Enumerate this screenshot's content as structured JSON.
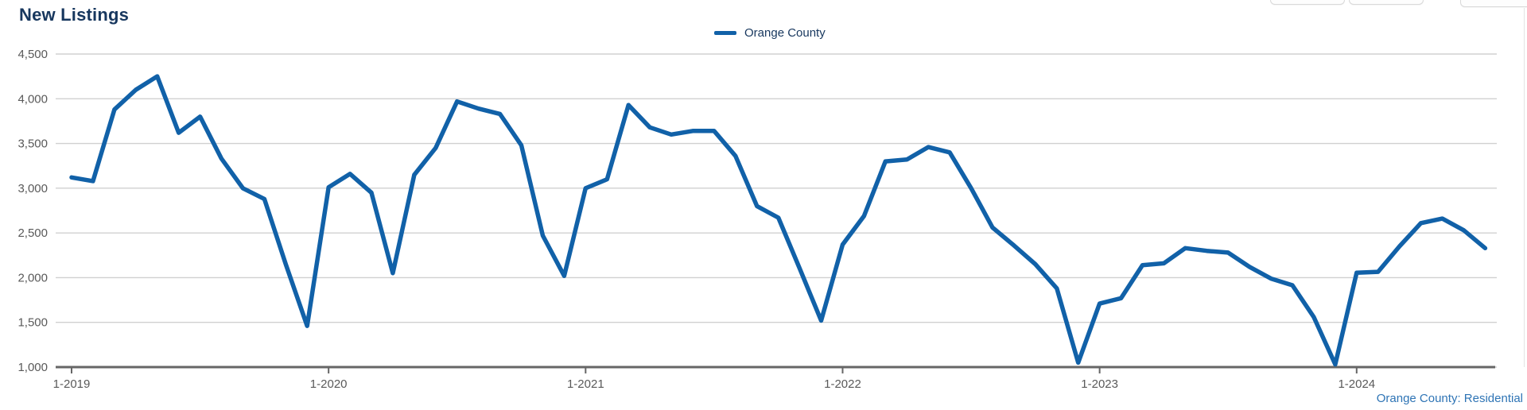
{
  "header": {
    "title": "New Listings",
    "title_color": "#17375E"
  },
  "legend": {
    "series_label": "Orange County",
    "swatch_color": "#1161A8"
  },
  "footer": {
    "caption": "Orange County: Residential",
    "color": "#2E74B5"
  },
  "chart_data": {
    "type": "line",
    "title": "New Listings",
    "xlabel": "",
    "ylabel": "",
    "ylim": [
      1000,
      4500
    ],
    "grid": "horizontal",
    "legend_position": "top-center",
    "colors": {
      "gridline": "#D0D0D0",
      "axis_line": "#666666",
      "tick_text": "#595959"
    },
    "y_tick_values": [
      4500,
      4000,
      3500,
      3000,
      2500,
      2000,
      1500,
      1000
    ],
    "y_tick_labels": [
      "4,500",
      "4,000",
      "3,500",
      "3,000",
      "2,500",
      "2,000",
      "1,500",
      "1,000"
    ],
    "x_tick_labels": [
      "1-2019",
      "1-2020",
      "1-2021",
      "1-2022",
      "1-2023",
      "1-2024"
    ],
    "series": [
      {
        "name": "Orange County",
        "color": "#1161A8",
        "x": [
          "1-2019",
          "2-2019",
          "3-2019",
          "4-2019",
          "5-2019",
          "6-2019",
          "7-2019",
          "8-2019",
          "9-2019",
          "10-2019",
          "11-2019",
          "12-2019",
          "1-2020",
          "2-2020",
          "3-2020",
          "4-2020",
          "5-2020",
          "6-2020",
          "7-2020",
          "8-2020",
          "9-2020",
          "10-2020",
          "11-2020",
          "12-2020",
          "1-2021",
          "2-2021",
          "3-2021",
          "4-2021",
          "5-2021",
          "6-2021",
          "7-2021",
          "8-2021",
          "9-2021",
          "10-2021",
          "11-2021",
          "12-2021",
          "1-2022",
          "2-2022",
          "3-2022",
          "4-2022",
          "5-2022",
          "6-2022",
          "7-2022",
          "8-2022",
          "9-2022",
          "10-2022",
          "11-2022",
          "12-2022",
          "1-2023",
          "2-2023",
          "3-2023",
          "4-2023",
          "5-2023",
          "6-2023",
          "7-2023",
          "8-2023",
          "9-2023",
          "10-2023",
          "11-2023",
          "12-2023",
          "1-2024",
          "2-2024",
          "3-2024",
          "4-2024",
          "5-2024",
          "6-2024",
          "7-2024"
        ],
        "values": [
          3120,
          3080,
          3880,
          4100,
          4250,
          3620,
          3800,
          3330,
          3000,
          2880,
          2150,
          1460,
          3010,
          3160,
          2950,
          2050,
          3150,
          3450,
          3970,
          3890,
          3830,
          3480,
          2470,
          2020,
          3000,
          3100,
          3930,
          3680,
          3600,
          3640,
          3640,
          3360,
          2800,
          2670,
          2100,
          1520,
          2370,
          2690,
          3300,
          3320,
          3460,
          3400,
          3000,
          2560,
          2360,
          2150,
          1880,
          1050,
          1710,
          1770,
          2140,
          2160,
          2330,
          2300,
          2280,
          2120,
          1990,
          1915,
          1560,
          1030,
          2055,
          2065,
          2350,
          2610,
          2660,
          2530,
          2330
        ]
      }
    ]
  }
}
